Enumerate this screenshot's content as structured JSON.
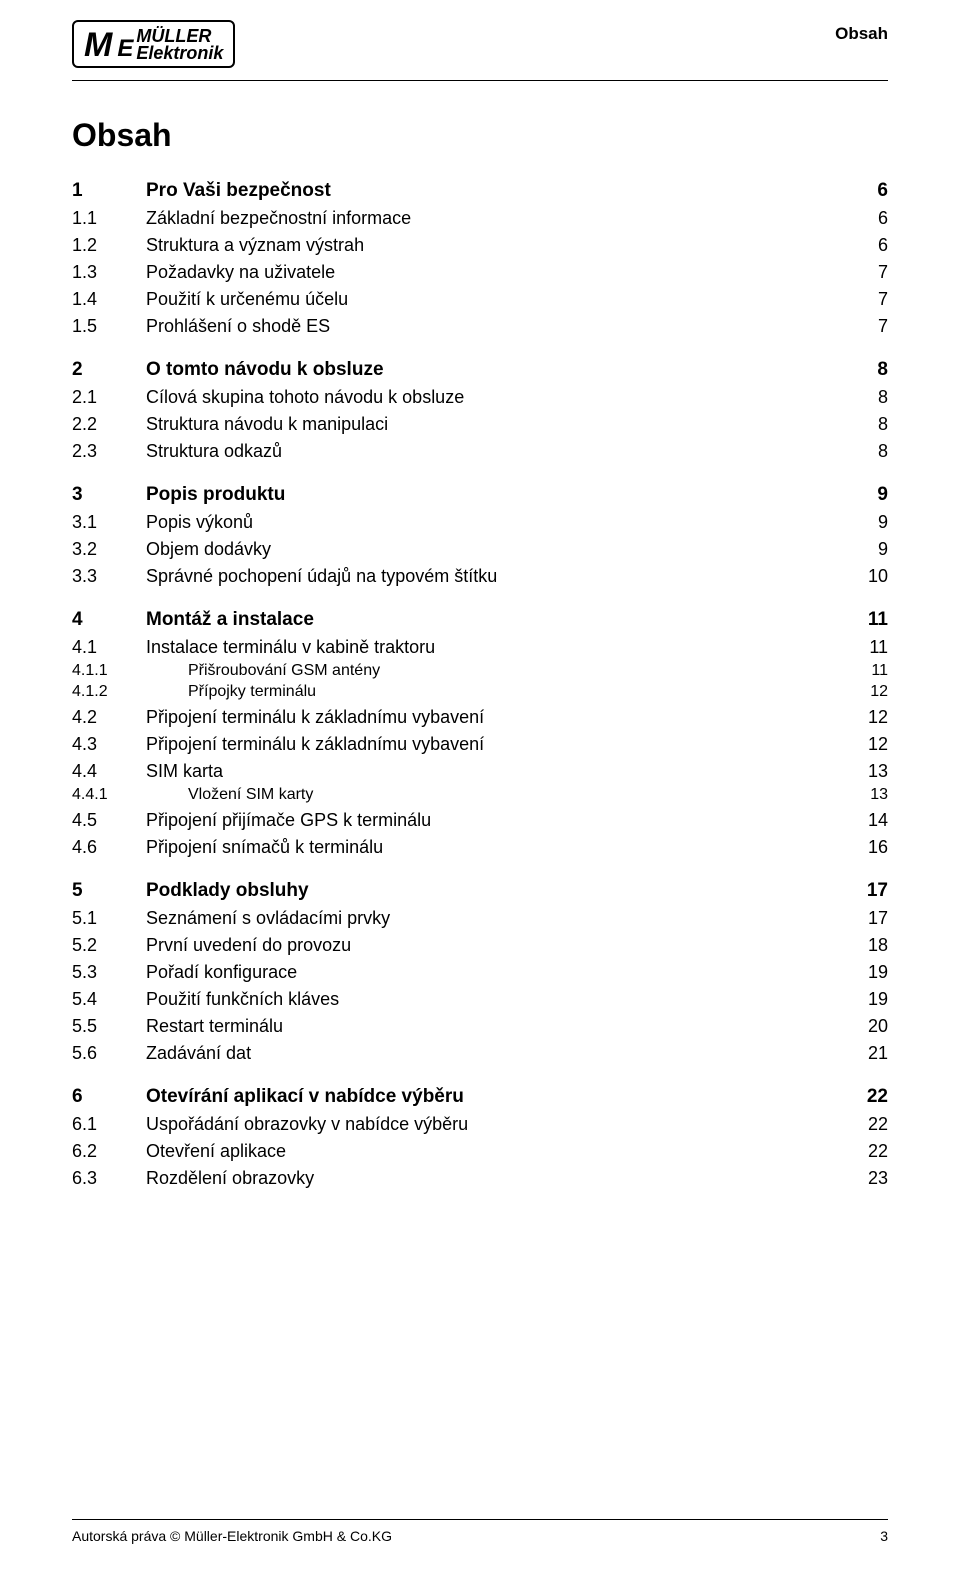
{
  "header": {
    "section_label": "Obsah",
    "logo": {
      "brand_top": "MÜLLER",
      "brand_bottom": "Elektronik"
    }
  },
  "page_title": "Obsah",
  "toc": [
    {
      "level": 1,
      "num": "1",
      "title": "Pro Vaši bezpečnost",
      "page": "6"
    },
    {
      "level": 2,
      "num": "1.1",
      "title": "Základní bezpečnostní informace",
      "page": "6"
    },
    {
      "level": 2,
      "num": "1.2",
      "title": "Struktura a význam výstrah",
      "page": "6"
    },
    {
      "level": 2,
      "num": "1.3",
      "title": "Požadavky na uživatele",
      "page": "7"
    },
    {
      "level": 2,
      "num": "1.4",
      "title": "Použití k určenému účelu",
      "page": "7"
    },
    {
      "level": 2,
      "num": "1.5",
      "title": "Prohlášení o shodě ES",
      "page": "7"
    },
    {
      "level": 1,
      "num": "2",
      "title": "O tomto návodu k obsluze",
      "page": "8"
    },
    {
      "level": 2,
      "num": "2.1",
      "title": "Cílová skupina tohoto návodu k obsluze",
      "page": "8"
    },
    {
      "level": 2,
      "num": "2.2",
      "title": "Struktura návodu k manipulaci",
      "page": "8"
    },
    {
      "level": 2,
      "num": "2.3",
      "title": "Struktura odkazů",
      "page": "8"
    },
    {
      "level": 1,
      "num": "3",
      "title": "Popis produktu",
      "page": "9"
    },
    {
      "level": 2,
      "num": "3.1",
      "title": "Popis výkonů",
      "page": "9"
    },
    {
      "level": 2,
      "num": "3.2",
      "title": "Objem dodávky",
      "page": "9"
    },
    {
      "level": 2,
      "num": "3.3",
      "title": "Správné pochopení údajů na typovém štítku",
      "page": "10"
    },
    {
      "level": 1,
      "num": "4",
      "title": "Montáž a instalace",
      "page": "11"
    },
    {
      "level": 2,
      "num": "4.1",
      "title": "Instalace terminálu v kabině traktoru",
      "page": "11"
    },
    {
      "level": 3,
      "num": "4.1.1",
      "title": "Přišroubování GSM antény",
      "page": "11"
    },
    {
      "level": 3,
      "num": "4.1.2",
      "title": "Přípojky terminálu",
      "page": "12"
    },
    {
      "level": 2,
      "num": "4.2",
      "title": "Připojení terminálu k základnímu vybavení",
      "page": "12"
    },
    {
      "level": 2,
      "num": "4.3",
      "title": "Připojení terminálu k základnímu vybavení",
      "page": "12"
    },
    {
      "level": 2,
      "num": "4.4",
      "title": "SIM karta",
      "page": "13"
    },
    {
      "level": 3,
      "num": "4.4.1",
      "title": "Vložení SIM karty",
      "page": "13"
    },
    {
      "level": 2,
      "num": "4.5",
      "title": "Připojení přijímače GPS k terminálu",
      "page": "14"
    },
    {
      "level": 2,
      "num": "4.6",
      "title": "Připojení snímačů k terminálu",
      "page": "16"
    },
    {
      "level": 1,
      "num": "5",
      "title": "Podklady obsluhy",
      "page": "17"
    },
    {
      "level": 2,
      "num": "5.1",
      "title": "Seznámení s ovládacími prvky",
      "page": "17"
    },
    {
      "level": 2,
      "num": "5.2",
      "title": "První uvedení do provozu",
      "page": "18"
    },
    {
      "level": 2,
      "num": "5.3",
      "title": "Pořadí konfigurace",
      "page": "19"
    },
    {
      "level": 2,
      "num": "5.4",
      "title": "Použití funkčních kláves",
      "page": "19"
    },
    {
      "level": 2,
      "num": "5.5",
      "title": "Restart terminálu",
      "page": "20"
    },
    {
      "level": 2,
      "num": "5.6",
      "title": "Zadávání dat",
      "page": "21"
    },
    {
      "level": 1,
      "num": "6",
      "title": "Otevírání aplikací v nabídce výběru",
      "page": "22"
    },
    {
      "level": 2,
      "num": "6.1",
      "title": "Uspořádání obrazovky v nabídce výběru",
      "page": "22"
    },
    {
      "level": 2,
      "num": "6.2",
      "title": "Otevření aplikace",
      "page": "22"
    },
    {
      "level": 2,
      "num": "6.3",
      "title": "Rozdělení obrazovky",
      "page": "23"
    }
  ],
  "footer": {
    "copyright": "Autorská práva © Müller-Elektronik GmbH & Co.KG",
    "page_number": "3"
  }
}
